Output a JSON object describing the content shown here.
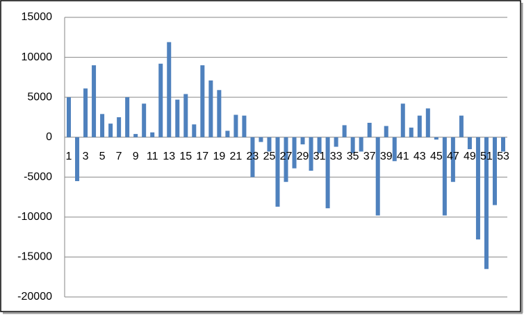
{
  "chart_data": {
    "type": "bar",
    "categories": [
      "1",
      null,
      "3",
      null,
      "5",
      null,
      "7",
      null,
      "9",
      null,
      "11",
      null,
      "13",
      null,
      "15",
      null,
      "17",
      null,
      "19",
      null,
      "21",
      null,
      "23",
      null,
      "25",
      null,
      "27",
      null,
      "29",
      null,
      "31",
      null,
      "33",
      null,
      "35",
      null,
      "37",
      null,
      "39",
      null,
      "41",
      null,
      "43",
      null,
      "45",
      null,
      "47",
      null,
      "49",
      null,
      "51",
      null,
      "53"
    ],
    "values": [
      5000,
      -5500,
      6100,
      9000,
      2900,
      1700,
      2500,
      5000,
      400,
      4200,
      600,
      9200,
      11900,
      4700,
      5400,
      1600,
      9000,
      7100,
      5900,
      800,
      2800,
      2700,
      -5000,
      -600,
      -1800,
      -8700,
      -5600,
      -3900,
      -900,
      -4200,
      -2000,
      -8900,
      -1200,
      1500,
      -2000,
      -1800,
      1800,
      -9800,
      1400,
      -3000,
      4200,
      1200,
      2700,
      3600,
      -300,
      -9800,
      -5600,
      2700,
      -1500,
      -12800,
      -16500,
      -8500,
      -1800
    ],
    "color": "#4f81bd",
    "ylim": [
      -20000,
      15000
    ],
    "yticks": [
      -20000,
      -15000,
      -10000,
      -5000,
      0,
      5000,
      10000,
      15000
    ],
    "grid": true
  }
}
